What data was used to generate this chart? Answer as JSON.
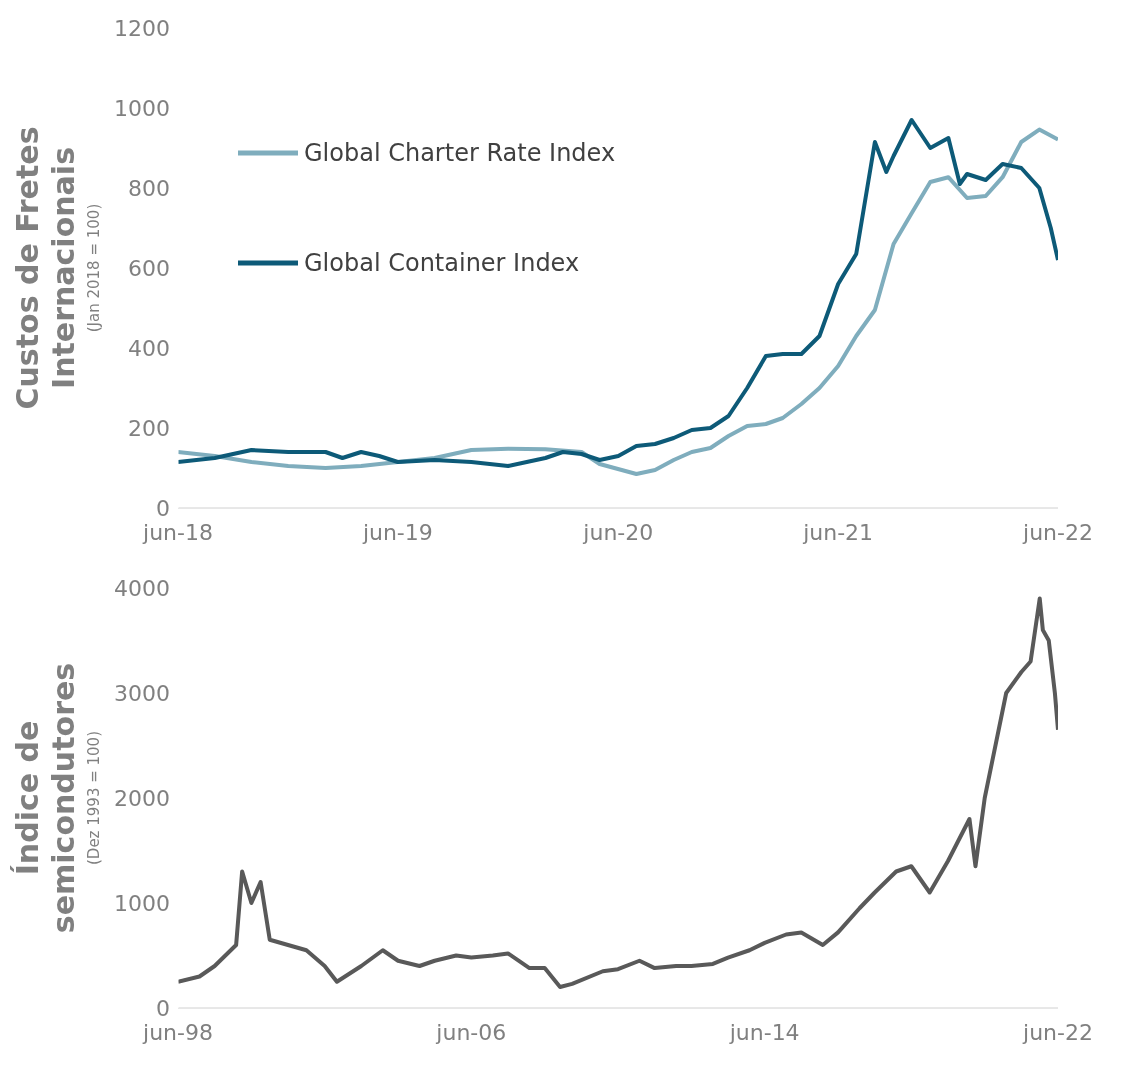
{
  "chart_data": [
    {
      "type": "line",
      "ylabel": "Custos de Fretes Internacionais",
      "annotations": [
        "(Jan 2018 = 100)"
      ],
      "xlim": [
        "2018-06",
        "2022-06"
      ],
      "xticks": [
        {
          "value": "2018-06",
          "label": "jun-18"
        },
        {
          "value": "2019-06",
          "label": "jun-19"
        },
        {
          "value": "2020-06",
          "label": "jun-20"
        },
        {
          "value": "2021-06",
          "label": "jun-21"
        },
        {
          "value": "2022-06",
          "label": "jun-22"
        }
      ],
      "ylim": [
        0,
        1200
      ],
      "yticks": [
        0,
        200,
        400,
        600,
        800,
        1000,
        1200
      ],
      "legend": "top left",
      "line_style": "solid",
      "series": [
        {
          "name": "Global Charter Rate Index",
          "color": "#7fadbd",
          "x": [
            "2018-06",
            "2018-08",
            "2018-10",
            "2018-12",
            "2019-02",
            "2019-04",
            "2019-06",
            "2019-08",
            "2019-10",
            "2019-12",
            "2020-02",
            "2020-04",
            "2020-05",
            "2020-07",
            "2020-08",
            "2020-09",
            "2020-10",
            "2020-11",
            "2020-12",
            "2021-01",
            "2021-02",
            "2021-03",
            "2021-04",
            "2021-05",
            "2021-06",
            "2021-07",
            "2021-08",
            "2021-09",
            "2021-10",
            "2021-11",
            "2021-12",
            "2022-01",
            "2022-02",
            "2022-03",
            "2022-04",
            "2022-05",
            "2022-06"
          ],
          "values": [
            140,
            130,
            115,
            105,
            100,
            105,
            115,
            125,
            145,
            148,
            147,
            140,
            110,
            85,
            95,
            120,
            140,
            150,
            180,
            205,
            210,
            225,
            260,
            300,
            355,
            430,
            495,
            660,
            737,
            815,
            827,
            775,
            780,
            827,
            915,
            946,
            921
          ]
        },
        {
          "name": "Global Container Index",
          "color": "#0d5a78",
          "x": [
            "2018-06",
            "2018-08",
            "2018-10",
            "2018-12",
            "2019-02",
            "2019-03",
            "2019-04",
            "2019-05",
            "2019-06",
            "2019-08",
            "2019-10",
            "2019-12",
            "2020-01",
            "2020-02",
            "2020-03",
            "2020-04",
            "2020-05",
            "2020-06",
            "2020-07",
            "2020-08",
            "2020-09",
            "2020-10",
            "2020-11",
            "2020-12",
            "2021-01",
            "2021-02",
            "2021-03",
            "2021-04",
            "2021-05",
            "2021-06",
            "2021-07",
            "2021-08",
            "2021-08-20",
            "2021-09",
            "2021-10",
            "2021-11",
            "2021-12",
            "2021-12-20",
            "2022-01",
            "2022-02",
            "2022-03",
            "2022-04",
            "2022-05",
            "2022-05-20",
            "2022-06"
          ],
          "values": [
            115,
            125,
            145,
            140,
            140,
            125,
            140,
            130,
            115,
            120,
            115,
            105,
            115,
            125,
            140,
            135,
            120,
            130,
            155,
            160,
            175,
            195,
            200,
            230,
            300,
            380,
            385,
            385,
            430,
            560,
            635,
            915,
            840,
            880,
            970,
            900,
            925,
            810,
            835,
            820,
            860,
            850,
            800,
            700,
            620
          ]
        }
      ]
    },
    {
      "type": "line",
      "ylabel": "Índice de semicondutores",
      "annotations": [
        "(Dez 1993 = 100)"
      ],
      "xlim": [
        "1998-06",
        "2022-06"
      ],
      "xticks": [
        {
          "value": "1998-06",
          "label": "jun-98"
        },
        {
          "value": "2006-06",
          "label": "jun-06"
        },
        {
          "value": "2014-06",
          "label": "jun-14"
        },
        {
          "value": "2022-06",
          "label": "jun-22"
        }
      ],
      "ylim": [
        0,
        4000
      ],
      "yticks": [
        0,
        1000,
        2000,
        3000,
        4000
      ],
      "line_style": "solid",
      "series": [
        {
          "color": "#595959",
          "x": [
            "1998-06",
            "1999-01",
            "1999-06",
            "2000-01",
            "2000-03",
            "2000-06",
            "2000-09",
            "2000-12",
            "2001-06",
            "2001-12",
            "2002-06",
            "2002-10",
            "2003-06",
            "2004-01",
            "2004-06",
            "2005-01",
            "2005-06",
            "2006-01",
            "2006-06",
            "2007-01",
            "2007-06",
            "2008-01",
            "2008-06",
            "2008-11",
            "2009-03",
            "2010-01",
            "2010-06",
            "2011-01",
            "2011-06",
            "2012-01",
            "2012-06",
            "2013-01",
            "2013-06",
            "2014-01",
            "2014-06",
            "2015-01",
            "2015-06",
            "2016-01",
            "2016-06",
            "2017-01",
            "2017-06",
            "2018-01",
            "2018-06",
            "2018-12",
            "2019-06",
            "2020-01",
            "2020-03",
            "2020-06",
            "2021-01",
            "2021-06",
            "2021-09",
            "2021-12",
            "2022-01",
            "2022-03",
            "2022-05",
            "2022-06"
          ],
          "values": [
            250,
            300,
            400,
            600,
            1300,
            1000,
            1200,
            650,
            600,
            550,
            400,
            250,
            400,
            550,
            450,
            400,
            450,
            500,
            480,
            500,
            520,
            380,
            380,
            200,
            230,
            350,
            370,
            450,
            380,
            400,
            400,
            420,
            480,
            550,
            620,
            700,
            720,
            600,
            720,
            950,
            1100,
            1300,
            1350,
            1100,
            1400,
            1800,
            1350,
            2000,
            3000,
            3200,
            3300,
            3900,
            3600,
            3500,
            3000,
            2650
          ]
        }
      ]
    }
  ]
}
